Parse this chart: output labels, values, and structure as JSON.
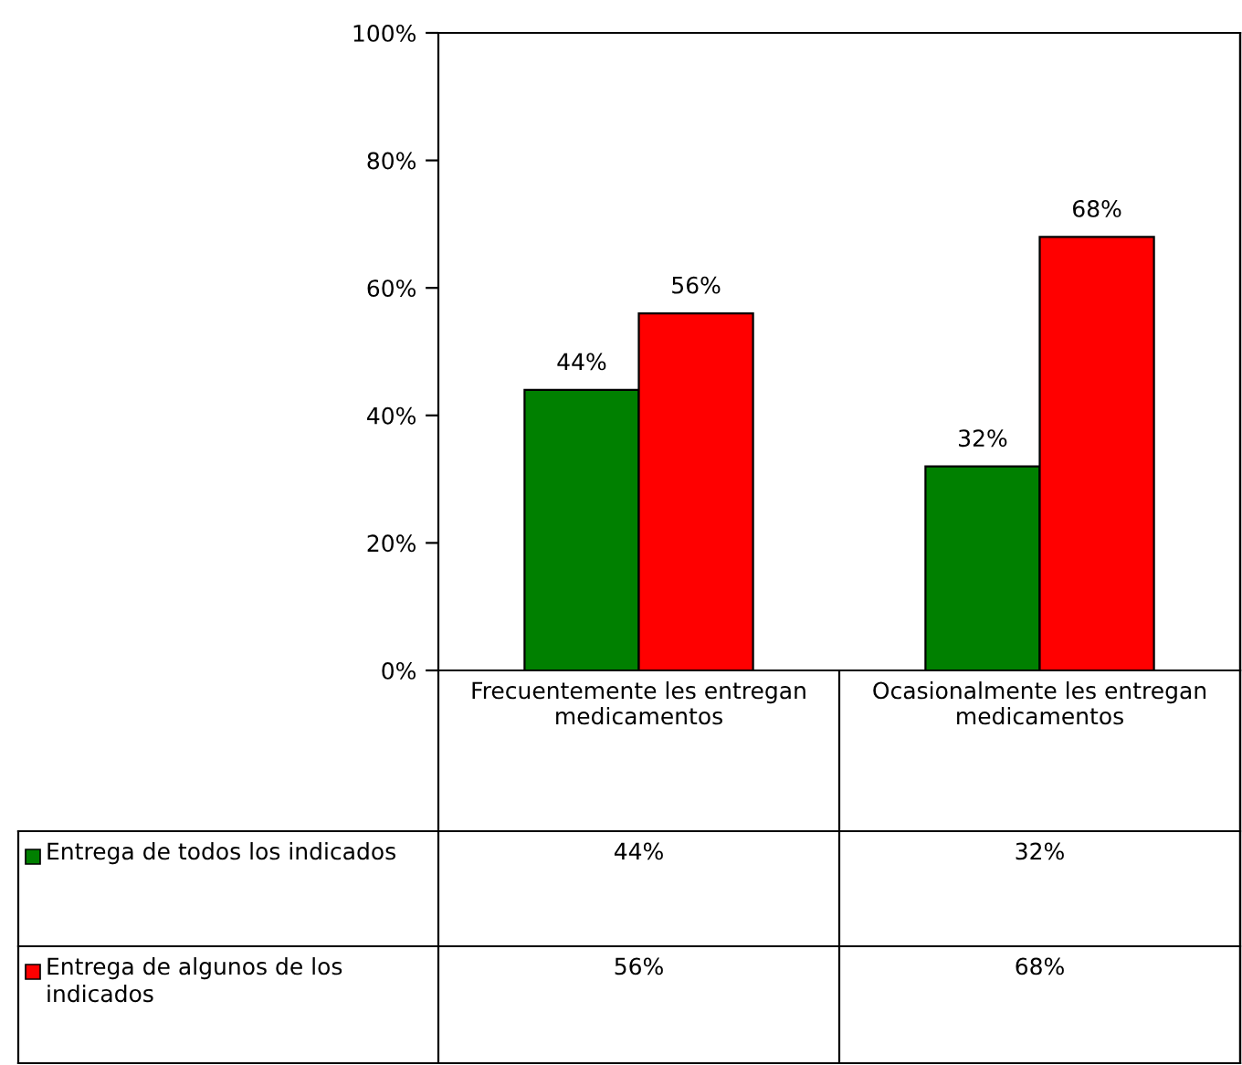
{
  "chart_data": {
    "type": "bar",
    "categories": [
      "Frecuentemente les entregan medicamentos",
      "Ocasionalmente les entregan medicamentos"
    ],
    "series": [
      {
        "name": "Entrega de todos los indicados",
        "color": "#008000",
        "values": [
          44,
          32
        ],
        "value_labels": [
          "44%",
          "32%"
        ]
      },
      {
        "name": "Entrega de algunos de los indicados",
        "color": "#ff0000",
        "values": [
          56,
          68
        ],
        "value_labels": [
          "56%",
          "68%"
        ]
      }
    ],
    "ylim": [
      0,
      100
    ],
    "yticks": [
      {
        "value": 0,
        "label": "0%"
      },
      {
        "value": 20,
        "label": "20%"
      },
      {
        "value": 40,
        "label": "40%"
      },
      {
        "value": 60,
        "label": "60%"
      },
      {
        "value": 80,
        "label": "80%"
      },
      {
        "value": 100,
        "label": "100%"
      }
    ],
    "grid": false,
    "legend": "bottom"
  }
}
